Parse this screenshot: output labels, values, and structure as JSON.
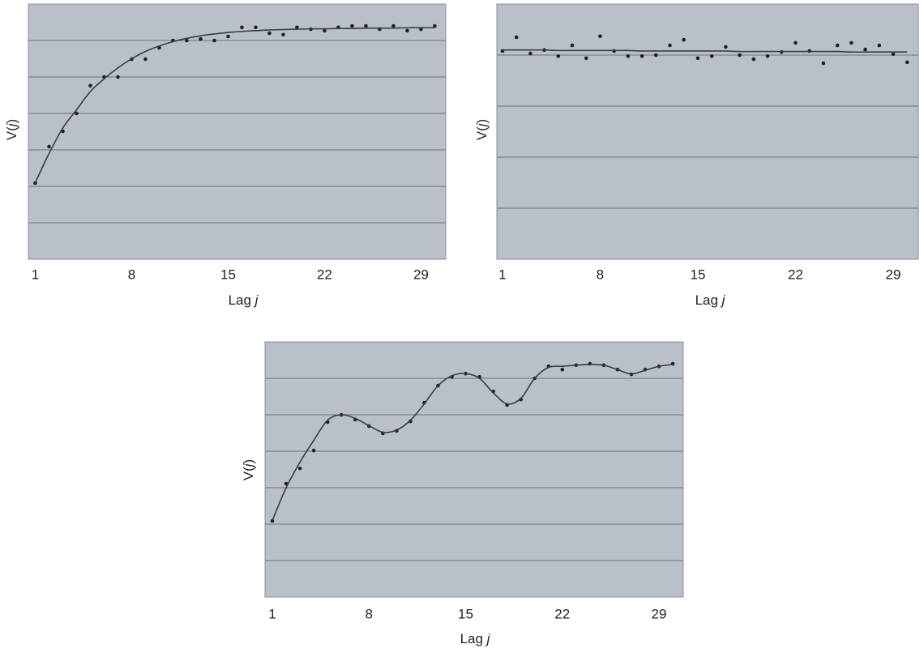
{
  "chart_data": [
    {
      "type": "scatter",
      "xlabel": [
        "Lag ",
        "j"
      ],
      "ylabel": [
        "V(",
        "j",
        ")"
      ],
      "x": [
        1,
        2,
        3,
        4,
        5,
        6,
        7,
        8,
        9,
        10,
        11,
        12,
        13,
        14,
        15,
        16,
        17,
        18,
        19,
        20,
        21,
        22,
        23,
        24,
        25,
        26,
        27,
        28,
        29,
        30
      ],
      "xlim": [
        0.5,
        30.8
      ],
      "xticks": [
        1,
        8,
        15,
        22,
        29
      ],
      "ylim": [
        0,
        7
      ],
      "ygrid": [
        1,
        2,
        3,
        4,
        5,
        6
      ],
      "series": [
        {
          "style": "points",
          "color": "#222222",
          "values": [
            2.09,
            3.09,
            3.51,
            4.0,
            4.76,
            5.0,
            5.0,
            5.49,
            5.49,
            5.8,
            6.0,
            6.0,
            6.04,
            6.0,
            6.11,
            6.36,
            6.36,
            6.2,
            6.16,
            6.36,
            6.31,
            6.27,
            6.36,
            6.4,
            6.4,
            6.31,
            6.4,
            6.27,
            6.31,
            6.4
          ]
        },
        {
          "style": "line",
          "color": "#3a3d42",
          "values": [
            2.1,
            2.9,
            3.6,
            4.1,
            4.6,
            4.95,
            5.25,
            5.5,
            5.7,
            5.85,
            5.97,
            6.06,
            6.13,
            6.18,
            6.22,
            6.25,
            6.27,
            6.29,
            6.3,
            6.31,
            6.32,
            6.32,
            6.33,
            6.33,
            6.34,
            6.34,
            6.34,
            6.35,
            6.35,
            6.35
          ]
        }
      ]
    },
    {
      "type": "scatter",
      "xlabel": [
        "Lag ",
        "j"
      ],
      "ylabel": [
        "V(",
        "j",
        ")"
      ],
      "x": [
        1,
        2,
        3,
        4,
        5,
        6,
        7,
        8,
        9,
        10,
        11,
        12,
        13,
        14,
        15,
        16,
        17,
        18,
        19,
        20,
        21,
        22,
        23,
        24,
        25,
        26,
        27,
        28,
        29,
        30
      ],
      "xlim": [
        0.6,
        30.8
      ],
      "xticks": [
        1,
        8,
        15,
        22,
        29
      ],
      "ylim": [
        0,
        5
      ],
      "ygrid": [
        1,
        2,
        3,
        4
      ],
      "series": [
        {
          "style": "points",
          "color": "#222222",
          "values": [
            4.08,
            4.35,
            4.03,
            4.1,
            3.98,
            4.19,
            3.94,
            4.37,
            4.08,
            3.98,
            3.98,
            4.0,
            4.19,
            4.3,
            3.94,
            3.98,
            4.16,
            4.0,
            3.92,
            3.98,
            4.06,
            4.24,
            4.08,
            3.84,
            4.19,
            4.24,
            4.11,
            4.19,
            4.02,
            3.86
          ]
        },
        {
          "style": "line",
          "color": "#3a3d42",
          "values": [
            4.1,
            4.1,
            4.1,
            4.1,
            4.09,
            4.09,
            4.09,
            4.09,
            4.09,
            4.09,
            4.08,
            4.08,
            4.08,
            4.08,
            4.08,
            4.08,
            4.08,
            4.07,
            4.07,
            4.07,
            4.07,
            4.07,
            4.07,
            4.07,
            4.07,
            4.06,
            4.06,
            4.06,
            4.06,
            4.06
          ]
        }
      ]
    },
    {
      "type": "scatter",
      "xlabel": [
        "Lag ",
        "j"
      ],
      "ylabel": [
        "V(",
        "j",
        ")"
      ],
      "x": [
        1,
        2,
        3,
        4,
        5,
        6,
        7,
        8,
        9,
        10,
        11,
        12,
        13,
        14,
        15,
        16,
        17,
        18,
        19,
        20,
        21,
        22,
        23,
        24,
        25,
        26,
        27,
        28,
        29,
        30
      ],
      "xlim": [
        0.47,
        30.76
      ],
      "xticks": [
        1,
        8,
        15,
        22,
        29
      ],
      "ylim": [
        0,
        7
      ],
      "ygrid": [
        1,
        2,
        3,
        4,
        5,
        6
      ],
      "series": [
        {
          "style": "points",
          "color": "#222222",
          "values": [
            2.09,
            3.11,
            3.53,
            4.02,
            4.8,
            5.0,
            4.87,
            4.69,
            4.49,
            4.56,
            4.82,
            5.33,
            5.8,
            6.04,
            6.13,
            6.04,
            5.64,
            5.27,
            5.42,
            6.0,
            6.33,
            6.24,
            6.36,
            6.4,
            6.36,
            6.24,
            6.11,
            6.24,
            6.33,
            6.4
          ]
        },
        {
          "style": "line",
          "color": "#3a3d42",
          "values": [
            2.1,
            3.0,
            3.7,
            4.3,
            4.85,
            5.0,
            4.9,
            4.7,
            4.52,
            4.58,
            4.85,
            5.3,
            5.8,
            6.07,
            6.13,
            6.0,
            5.6,
            5.3,
            5.45,
            6.0,
            6.3,
            6.33,
            6.36,
            6.38,
            6.36,
            6.24,
            6.12,
            6.22,
            6.33,
            6.38
          ]
        }
      ]
    }
  ]
}
